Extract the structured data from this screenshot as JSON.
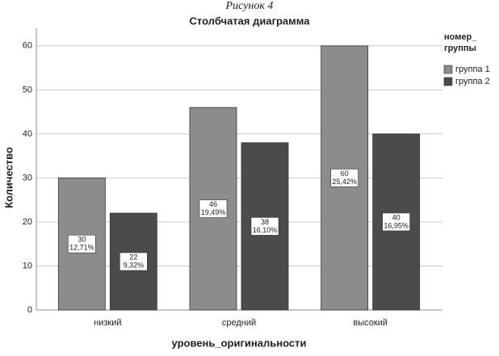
{
  "caption": "Рисунок 4",
  "chart_data": {
    "type": "bar",
    "title": "Столбчатая диаграмма",
    "x_label": "уровень_оригинальности",
    "y_label": "Количество",
    "legend_title": [
      "номер_",
      "группы"
    ],
    "legend_position": "right",
    "categories": [
      "низкий",
      "средний",
      "высокий"
    ],
    "series": [
      {
        "name": "группа 1",
        "color": "#8c8c8c",
        "values": [
          30,
          46,
          60
        ],
        "percent_labels": [
          "12,71%",
          "19,49%",
          "25,42%"
        ]
      },
      {
        "name": "группа 2",
        "color": "#4b4b4b",
        "values": [
          22,
          38,
          40
        ],
        "percent_labels": [
          "9,32%",
          "16,10%",
          "16,95%"
        ]
      }
    ],
    "ylim": [
      0,
      64
    ],
    "yticks": [
      0,
      10,
      20,
      30,
      40,
      50,
      60
    ],
    "grid": true
  }
}
